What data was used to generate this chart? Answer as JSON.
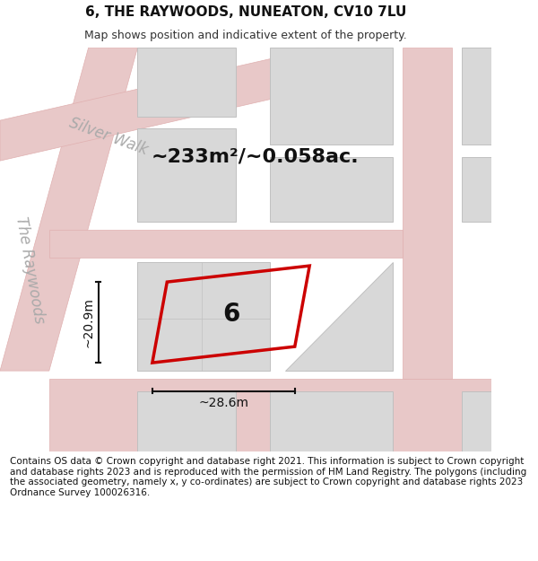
{
  "title": "6, THE RAYWOODS, NUNEATON, CV10 7LU",
  "subtitle": "Map shows position and indicative extent of the property.",
  "footer": "Contains OS data © Crown copyright and database right 2021. This information is subject to Crown copyright and database rights 2023 and is reproduced with the permission of HM Land Registry. The polygons (including the associated geometry, namely x, y co-ordinates) are subject to Crown copyright and database rights 2023 Ordnance Survey 100026316.",
  "area_text": "~233m²/~0.058ac.",
  "width_text": "~28.6m",
  "height_text": "~20.9m",
  "plot_number": "6",
  "bg_color": "#f5f5f5",
  "map_bg": "#f0eeee",
  "building_color": "#d8d8d8",
  "building_edge": "#c0c0c0",
  "road_color": "#e8c8c8",
  "plot_outline_color": "#cc0000",
  "street_label_color": "#aaaaaa",
  "dim_line_color": "#111111",
  "title_fontsize": 11,
  "subtitle_fontsize": 9,
  "footer_fontsize": 7.5,
  "area_fontsize": 16,
  "plot_num_fontsize": 20,
  "dim_fontsize": 10,
  "street_fontsize": 12
}
